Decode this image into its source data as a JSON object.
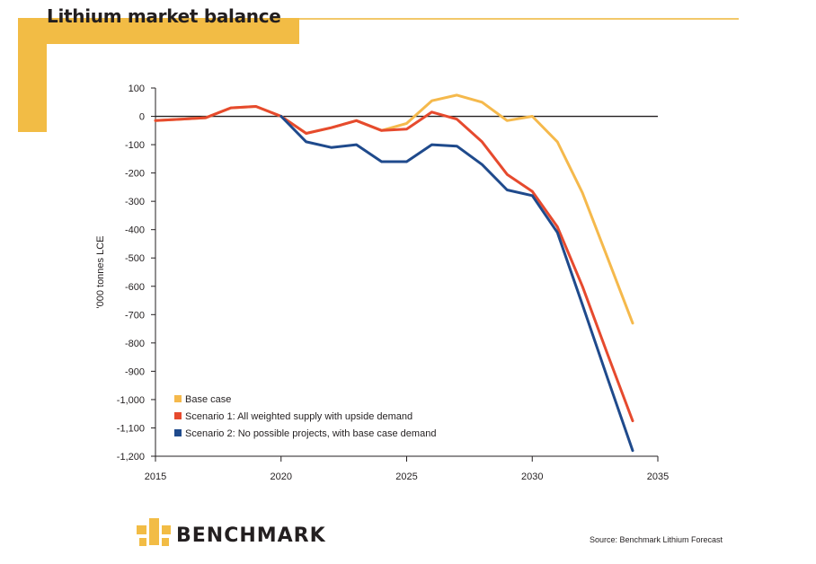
{
  "page": {
    "title": "Lithium market balance",
    "source_note": "Source: Benchmark Lithium Forecast",
    "logo_text": "BENCHMARK"
  },
  "colors": {
    "accent": "#f2bc45",
    "base_case": "#f5b94c",
    "scenario_1": "#e64a2e",
    "scenario_2": "#1f4a8c"
  },
  "chart_data": {
    "type": "line",
    "title": "Lithium market balance",
    "xlabel": "",
    "ylabel": "'000 tonnes LCE",
    "xlim": [
      2015,
      2035
    ],
    "ylim": [
      -1200,
      100
    ],
    "x_ticks": [
      2015,
      2020,
      2025,
      2030,
      2035
    ],
    "x_tick_labels": [
      "2015",
      "2020",
      "2025",
      "2030",
      "2035"
    ],
    "y_ticks": [
      100,
      0,
      -100,
      -200,
      -300,
      -400,
      -500,
      -600,
      -700,
      -800,
      -900,
      -1000,
      -1100,
      -1200
    ],
    "y_tick_labels": [
      "100",
      "0",
      "-100",
      "-200",
      "-300",
      "-400",
      "-500",
      "-600",
      "-700",
      "-800",
      "-900",
      "-1,000",
      "-1,100",
      "-1,200"
    ],
    "zero_line": true,
    "grid": false,
    "legend_position": "bottom-left",
    "series": [
      {
        "name": "Base case",
        "color": "#f5b94c",
        "x": [
          2015,
          2016,
          2017,
          2018,
          2019,
          2020,
          2021,
          2022,
          2023,
          2024,
          2025,
          2026,
          2027,
          2028,
          2029,
          2030,
          2031,
          2032,
          2033,
          2034
        ],
        "values": [
          -15,
          -10,
          -5,
          30,
          35,
          0,
          -60,
          -40,
          -15,
          -50,
          -25,
          55,
          75,
          50,
          -15,
          0,
          -90,
          -270,
          -500,
          -730
        ]
      },
      {
        "name": "Scenario 1: All weighted supply with upside demand",
        "color": "#e64a2e",
        "x": [
          2015,
          2016,
          2017,
          2018,
          2019,
          2020,
          2021,
          2022,
          2023,
          2024,
          2025,
          2026,
          2027,
          2028,
          2029,
          2030,
          2031,
          2032,
          2033,
          2034
        ],
        "values": [
          -15,
          -10,
          -5,
          30,
          35,
          0,
          -60,
          -40,
          -15,
          -50,
          -45,
          15,
          -10,
          -90,
          -205,
          -265,
          -390,
          -600,
          -840,
          -1075
        ]
      },
      {
        "name": "Scenario 2: No possible projects, with base case demand",
        "color": "#1f4a8c",
        "x": [
          2020,
          2021,
          2022,
          2023,
          2024,
          2025,
          2026,
          2027,
          2028,
          2029,
          2030,
          2031,
          2032,
          2033,
          2034
        ],
        "values": [
          0,
          -90,
          -110,
          -100,
          -160,
          -160,
          -100,
          -105,
          -170,
          -260,
          -280,
          -410,
          -665,
          -925,
          -1180
        ]
      }
    ]
  }
}
